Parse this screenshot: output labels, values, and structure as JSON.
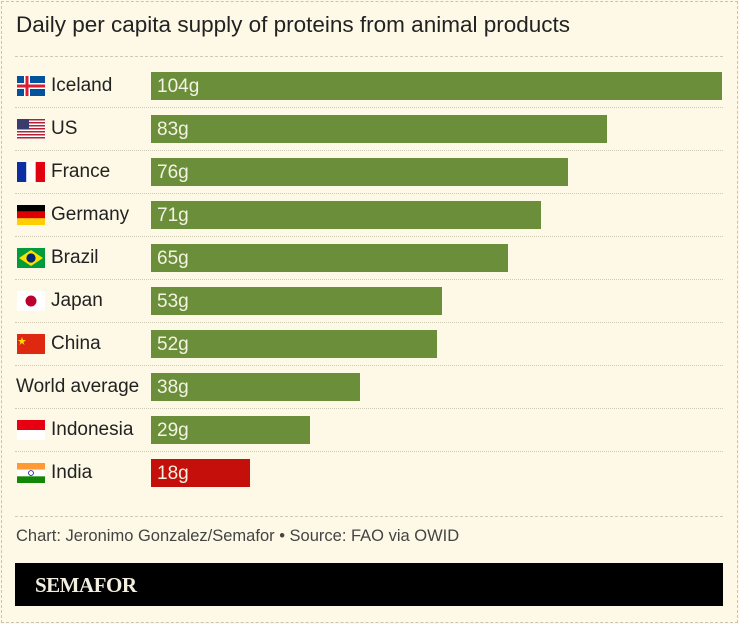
{
  "title": "Daily per capita supply of proteins from animal products",
  "source": "Chart: Jeronimo Gonzalez/Semafor • Source: FAO via OWID",
  "brand": "SEMAFOR",
  "colors": {
    "bar": "#6b8e3a",
    "highlight": "#c40f0a",
    "background": "#fdf9e6"
  },
  "chart_data": {
    "type": "bar",
    "orientation": "horizontal",
    "title": "Daily per capita supply of proteins from animal products",
    "unit": "g",
    "categories": [
      "Iceland",
      "US",
      "France",
      "Germany",
      "Brazil",
      "Japan",
      "China",
      "World average",
      "Indonesia",
      "India"
    ],
    "values": [
      104,
      83,
      76,
      71,
      65,
      53,
      52,
      38,
      29,
      18
    ],
    "labels": [
      "104g",
      "83g",
      "76g",
      "71g",
      "65g",
      "53g",
      "52g",
      "38g",
      "29g",
      "18g"
    ],
    "flags": [
      "iceland",
      "us",
      "france",
      "germany",
      "brazil",
      "japan",
      "china",
      "",
      "indonesia",
      "india"
    ],
    "highlight": "India",
    "xlim": [
      0,
      104
    ],
    "grid": false
  }
}
